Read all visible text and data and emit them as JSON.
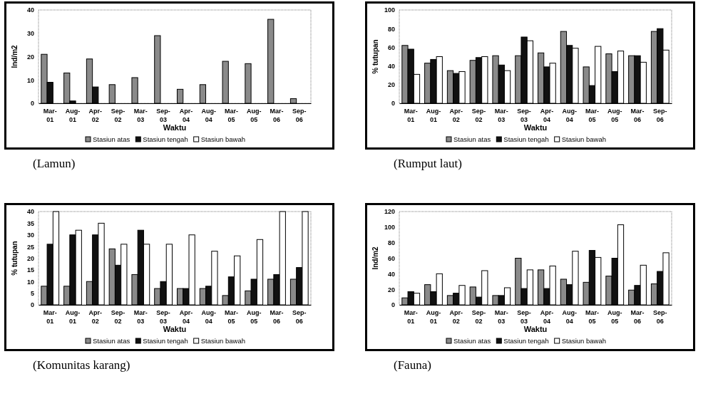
{
  "chart_data": [
    {
      "type": "bar",
      "categories": [
        "Mar-01",
        "Aug-01",
        "Apr-02",
        "Sep-02",
        "Mar-03",
        "Sep-03",
        "Apr-04",
        "Aug-04",
        "Mar-05",
        "Aug-05",
        "Mar-06",
        "Sep-06"
      ],
      "xlabel": "Waktu",
      "ylabel": "Ind/m2",
      "ylim": [
        0,
        40
      ],
      "yticks": [
        0,
        10,
        20,
        30,
        40
      ],
      "legend": "bottom",
      "annotations": [
        "(Lamun)"
      ],
      "series": [
        {
          "name": "Stasiun atas",
          "color": "#8a8a8a",
          "values": [
            21,
            13,
            19,
            8,
            11,
            29,
            6,
            8,
            18,
            17,
            36,
            2
          ]
        },
        {
          "name": "Stasiun tengah",
          "color": "#111111",
          "values": [
            9,
            1,
            7,
            0,
            0,
            0,
            0,
            0,
            0,
            0,
            0,
            0
          ]
        },
        {
          "name": "Stasiun bawah",
          "color": "#ffffff",
          "values": [
            0,
            0,
            0,
            0,
            0,
            0,
            0,
            0,
            0,
            0,
            0,
            0
          ]
        }
      ]
    },
    {
      "type": "bar",
      "categories": [
        "Mar-01",
        "Aug-01",
        "Apr-02",
        "Sep-02",
        "Mar-03",
        "Sep-03",
        "Apr-04",
        "Aug-04",
        "Mar-05",
        "Aug-05",
        "Mar-06",
        "Sep-06"
      ],
      "xlabel": "Waktu",
      "ylabel": "% tutupan",
      "ylim": [
        0,
        100
      ],
      "yticks": [
        0,
        20,
        40,
        60,
        80,
        100
      ],
      "legend": "bottom",
      "annotations": [
        "(Rumput laut)"
      ],
      "series": [
        {
          "name": "Stasiun atas",
          "color": "#8a8a8a",
          "values": [
            62,
            43,
            35,
            46,
            51,
            51,
            54,
            77,
            39,
            53,
            51,
            77
          ]
        },
        {
          "name": "Stasiun tengah",
          "color": "#111111",
          "values": [
            58,
            47,
            32,
            49,
            41,
            71,
            39,
            62,
            19,
            34,
            51,
            80
          ]
        },
        {
          "name": "Stasiun bawah",
          "color": "#ffffff",
          "values": [
            31,
            50,
            34,
            50,
            35,
            67,
            43,
            59,
            61,
            56,
            44,
            57
          ]
        }
      ]
    },
    {
      "type": "bar",
      "categories": [
        "Mar-01",
        "Aug-01",
        "Apr-02",
        "Sep-02",
        "Mar-03",
        "Sep-03",
        "Apr-04",
        "Aug-04",
        "Mar-05",
        "Aug-05",
        "Mar-06",
        "Sep-06"
      ],
      "xlabel": "Waktu",
      "ylabel": "% tutupan",
      "ylim": [
        0,
        40
      ],
      "yticks": [
        0,
        5,
        10,
        15,
        20,
        25,
        30,
        35,
        40
      ],
      "legend": "bottom",
      "annotations": [
        "(Komunitas karang)"
      ],
      "series": [
        {
          "name": "Stasiun atas",
          "color": "#8a8a8a",
          "values": [
            8,
            8,
            10,
            24,
            13,
            7,
            7,
            7,
            4,
            6,
            11,
            11
          ]
        },
        {
          "name": "Stasiun tengah",
          "color": "#111111",
          "values": [
            26,
            30,
            30,
            17,
            32,
            10,
            7,
            8,
            12,
            11,
            13,
            16
          ]
        },
        {
          "name": "Stasiun bawah",
          "color": "#ffffff",
          "values": [
            40,
            32,
            35,
            26,
            26,
            26,
            30,
            23,
            21,
            28,
            40,
            40
          ]
        }
      ]
    },
    {
      "type": "bar",
      "categories": [
        "Mar-01",
        "Aug-01",
        "Apr-02",
        "Sep-02",
        "Mar-03",
        "Sep-03",
        "Apr-04",
        "Aug-04",
        "Mar-05",
        "Aug-05",
        "Mar-06",
        "Sep-06"
      ],
      "xlabel": "Waktu",
      "ylabel": "Ind/m2",
      "ylim": [
        0,
        120
      ],
      "yticks": [
        0,
        20,
        40,
        60,
        80,
        100,
        120
      ],
      "legend": "bottom",
      "annotations": [
        "(Fauna)"
      ],
      "series": [
        {
          "name": "Stasiun atas",
          "color": "#8a8a8a",
          "values": [
            9,
            26,
            12,
            23,
            12,
            60,
            45,
            33,
            29,
            37,
            19,
            27
          ]
        },
        {
          "name": "Stasiun tengah",
          "color": "#111111",
          "values": [
            17,
            17,
            15,
            10,
            12,
            21,
            21,
            26,
            70,
            60,
            25,
            43
          ]
        },
        {
          "name": "Stasiun bawah",
          "color": "#ffffff",
          "values": [
            15,
            40,
            25,
            44,
            22,
            45,
            50,
            69,
            61,
            103,
            51,
            67
          ]
        }
      ]
    }
  ]
}
